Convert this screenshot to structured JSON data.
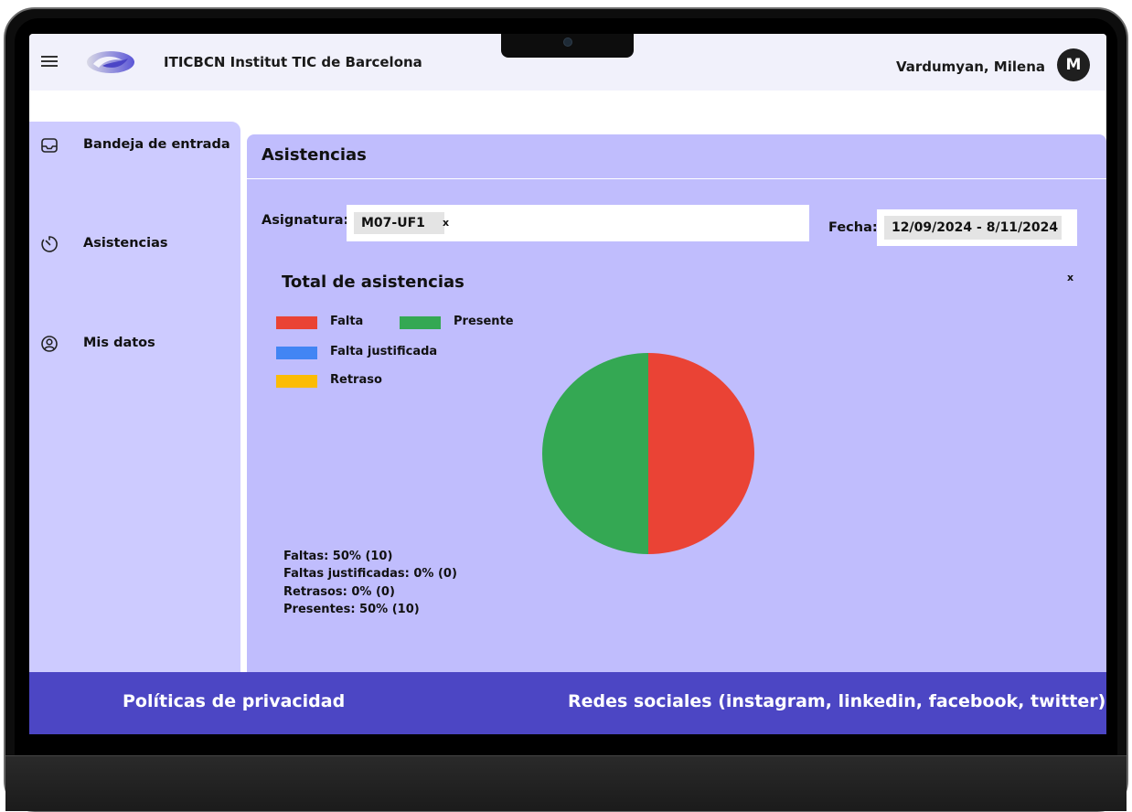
{
  "header": {
    "brand": "ITICBCN Institut TIC de Barcelona",
    "user_name": "Vardumyan, Milena",
    "avatar_initial": "M"
  },
  "sidebar": {
    "items": [
      {
        "label": "Bandeja de entrada",
        "icon": "inbox-icon"
      },
      {
        "label": "Asistencias",
        "icon": "timer-icon"
      },
      {
        "label": "Mis datos",
        "icon": "user-circle-icon"
      }
    ]
  },
  "main": {
    "title": "Asistencias",
    "asignatura_label": "Asignatura:",
    "asignatura_chip": "M07-UF1",
    "chip_remove": "x",
    "fecha_label": "Fecha:",
    "fecha_value": "12/09/2024 - 8/11/2024",
    "close_label": "x"
  },
  "chart_data": {
    "type": "pie",
    "title": "Total de asistencias",
    "legend": [
      {
        "name": "Falta",
        "color": "#ea4335"
      },
      {
        "name": "Presente",
        "color": "#34a853"
      },
      {
        "name": "Falta justificada",
        "color": "#4285f4"
      },
      {
        "name": "Retraso",
        "color": "#fbbc05"
      }
    ],
    "slices": [
      {
        "name": "Falta",
        "value": 10,
        "color": "#ea4335"
      },
      {
        "name": "Falta justificada",
        "value": 0,
        "color": "#4285f4"
      },
      {
        "name": "Retraso",
        "value": 0,
        "color": "#fbbc05"
      },
      {
        "name": "Presente",
        "value": 10,
        "color": "#34a853"
      }
    ],
    "summary": [
      "Faltas: 50% (10)",
      "Faltas justificadas: 0% (0)",
      "Retrasos: 0% (0)",
      "Presentes: 50% (10)"
    ]
  },
  "footer": {
    "privacy": "Políticas de privacidad",
    "social": "Redes sociales (instagram, linkedin, facebook, twitter)"
  },
  "colors": {
    "panel": "#c0bdfd",
    "sidebar": "#cdcbff",
    "footer": "#4c46c4"
  }
}
